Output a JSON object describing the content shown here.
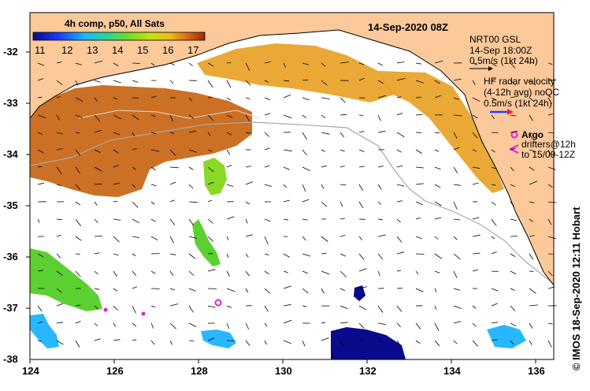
{
  "colorbar": {
    "title": "4h comp, p50, All Sats",
    "ticks": [
      "11",
      "12",
      "13",
      "14",
      "15",
      "16",
      "17"
    ],
    "colors": [
      "#0a0a8c",
      "#1a3cff",
      "#18b8ff",
      "#22d6a0",
      "#6adc2a",
      "#c8e010",
      "#f0b818",
      "#d86a10",
      "#a02808"
    ]
  },
  "header": {
    "date": "14-Sep-2020 08Z"
  },
  "legend": {
    "nrt_title": "NRT00 GSL",
    "nrt_time": "14-Sep 18:00Z",
    "nrt_scale": "0.5m/s (1kt 24h)",
    "hf_line1": "HF radar velocity",
    "hf_line2": "(4-12h avg) noQC",
    "hf_scale": "0.5m/s (1kt 24h)",
    "argo_label": "Argo",
    "drifters_line1": "drifters@12h",
    "drifters_line2": "to 15/09-12Z"
  },
  "axes": {
    "x_ticks": [
      "124",
      "126",
      "128",
      "130",
      "132",
      "134",
      "136"
    ],
    "y_ticks": [
      "-32",
      "-33",
      "-34",
      "-35",
      "-36",
      "-37",
      "-38"
    ]
  },
  "credit": "© IMOS 18-Sep-2020 12:11 Hobart",
  "map_colors": {
    "land": "#fcc99a",
    "no_data": "#ffffff",
    "argo": "#e020e0",
    "hf_radar": "#2040ff",
    "hf_radar_tip": "#ff2020"
  }
}
